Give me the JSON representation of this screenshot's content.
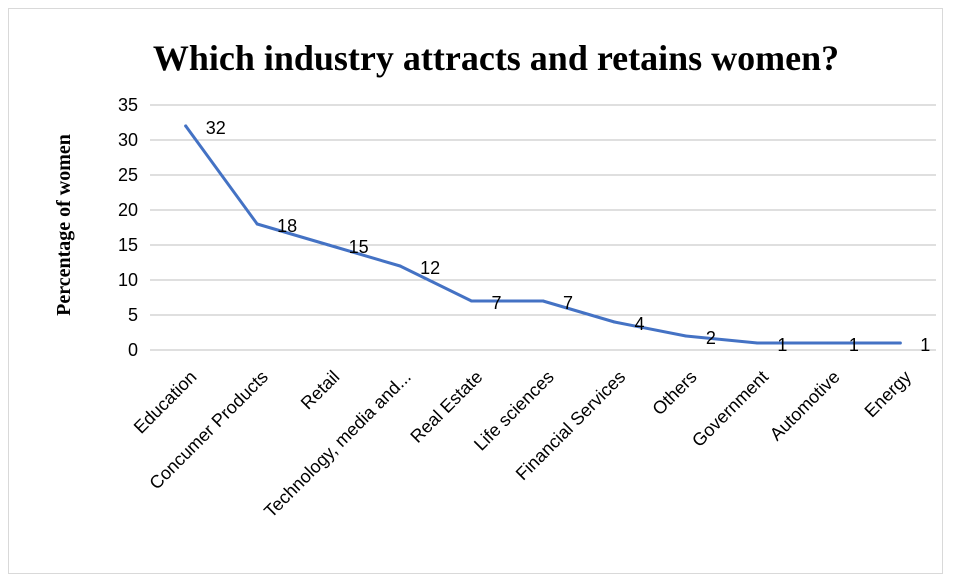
{
  "chart_data": {
    "type": "line",
    "title": "Which industry attracts and retains women?",
    "ylabel": "Percentage of women",
    "xlabel": "",
    "ylim": [
      0,
      35
    ],
    "y_ticks": [
      0,
      5,
      10,
      15,
      20,
      25,
      30,
      35
    ],
    "grid": true,
    "legend": "none",
    "categories": [
      "Education",
      "Concumer Products",
      "Retail",
      "Technology, media and...",
      "Real  Estate",
      "Life sciences",
      "Financial Services",
      "Others",
      "Government",
      "Automotive",
      "Energy"
    ],
    "series": [
      {
        "values": [
          32,
          18,
          15,
          12,
          7,
          7,
          4,
          2,
          1,
          1,
          1
        ],
        "color": "#4472c4"
      }
    ]
  }
}
